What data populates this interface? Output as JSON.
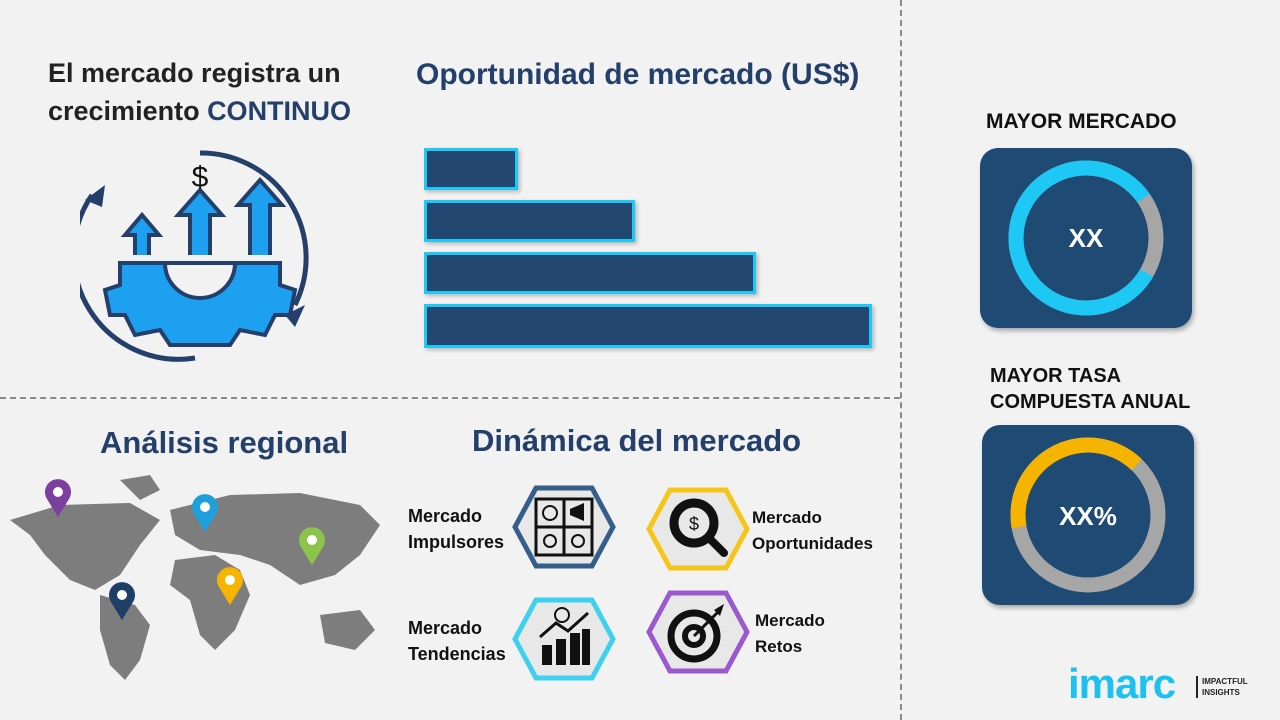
{
  "growth": {
    "line1": "El mercado registra un",
    "line2_prefix": "crecimiento ",
    "line2_emph": "CONTINUO",
    "icon": "growth-gear-dollar-icon"
  },
  "opportunity": {
    "title": "Oportunidad de mercado (US$)",
    "bars_relative": [
      0.21,
      0.47,
      0.74,
      1.0
    ]
  },
  "regional": {
    "title": "Análisis regional",
    "pin_colors": [
      "#7b3fa0",
      "#1ea0dc",
      "#8cc34a",
      "#f5b400",
      "#1f3f66"
    ]
  },
  "dynamics": {
    "title": "Dinámica del mercado",
    "items": [
      {
        "line1": "Mercado",
        "line2": "Impulsores",
        "color": "#355f8a",
        "icon": "puzzle-icon"
      },
      {
        "line1": "Mercado",
        "line2": "Oportunidades",
        "color": "#f5c518",
        "icon": "magnifier-dollar-icon"
      },
      {
        "line1": "Mercado",
        "line2": "Tendencias",
        "color": "#3fd0ef",
        "icon": "chart-growth-icon"
      },
      {
        "line1": "Mercado",
        "line2": "Retos",
        "color": "#9b59d0",
        "icon": "target-icon"
      }
    ]
  },
  "largest": {
    "title": "MAYOR MERCADO",
    "value": "XX",
    "share": 0.82,
    "color": "#1ec8f5"
  },
  "cagr": {
    "title1": "MAYOR TASA",
    "title2": "COMPUESTA ANUAL",
    "value": "XX%",
    "share": 0.4,
    "color": "#f5b400"
  },
  "logo": {
    "brand": "imarc",
    "tag1": "IMPACTFUL",
    "tag2": "INSIGHTS"
  }
}
